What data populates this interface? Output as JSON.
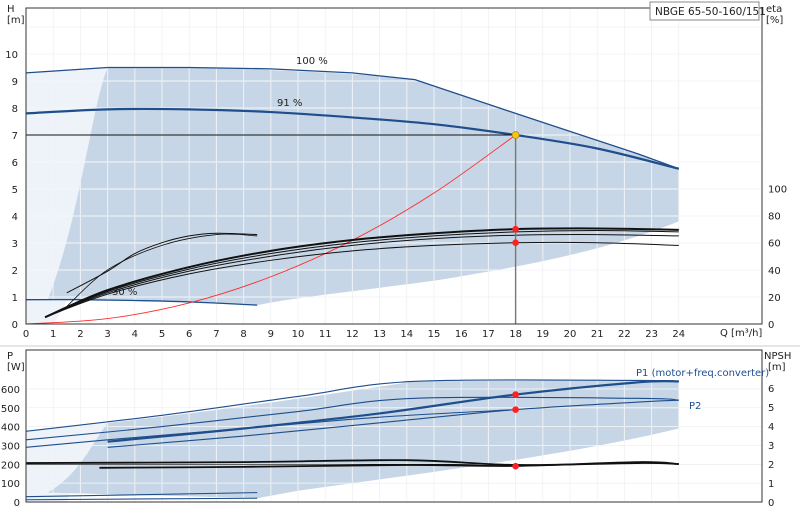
{
  "title": "NBGE 65-50-160/151",
  "top_chart": {
    "y_left_label": "H",
    "y_left_unit": "[m]",
    "y_right_label": "eta",
    "y_right_unit": "[%]",
    "x_label": "Q [m³/h]",
    "x_ticks": [
      "0",
      "1",
      "2",
      "3",
      "4",
      "5",
      "6",
      "7",
      "8",
      "9",
      "10",
      "11",
      "12",
      "13",
      "14",
      "15",
      "16",
      "17",
      "18",
      "19",
      "20",
      "21",
      "22",
      "23",
      "24"
    ],
    "y_left_ticks": [
      "0",
      "1",
      "2",
      "3",
      "4",
      "5",
      "6",
      "7",
      "8",
      "9",
      "10"
    ],
    "y_right_ticks": [
      "0",
      "20",
      "40",
      "60",
      "80",
      "100"
    ],
    "speed_labels": [
      "100 %",
      "91 %",
      "30 %"
    ]
  },
  "bottom_chart": {
    "y_left_label": "P",
    "y_left_unit": "[W]",
    "y_right_label": "NPSH",
    "y_right_unit": "[m]",
    "y_left_ticks": [
      "0",
      "100",
      "200",
      "300",
      "400",
      "500",
      "600"
    ],
    "y_right_ticks": [
      "0",
      "1",
      "2",
      "3",
      "4",
      "5",
      "6"
    ],
    "series_labels": [
      "P1 (motor+freq.converter)",
      "P2"
    ]
  },
  "chart_data": [
    {
      "type": "line",
      "name": "pump-curves",
      "xlim": [
        0,
        24.6
      ],
      "ylim": [
        0,
        11
      ],
      "y2lim": [
        0,
        102.8
      ],
      "grid": true,
      "duty_point": {
        "x": 18,
        "y": 7.0
      },
      "series": [
        {
          "name": "100 %",
          "role": "head",
          "x": [
            0,
            3,
            6,
            9,
            12,
            14.3,
            18,
            22.5,
            24
          ],
          "y": [
            9.3,
            9.5,
            9.5,
            9.45,
            9.3,
            9.05,
            7.8,
            6.3,
            5.75
          ]
        },
        {
          "name": "91 %",
          "role": "head",
          "x": [
            0,
            3,
            6,
            9,
            12,
            15,
            18,
            21,
            24
          ],
          "y": [
            7.8,
            7.95,
            7.95,
            7.85,
            7.65,
            7.4,
            7.0,
            6.5,
            5.75
          ]
        },
        {
          "name": "30 %",
          "role": "head",
          "x": [
            0,
            2,
            4,
            6,
            8.5
          ],
          "y": [
            0.9,
            0.9,
            0.87,
            0.82,
            0.7
          ]
        },
        {
          "role": "system",
          "x": [
            0,
            3,
            6,
            9,
            12,
            15,
            18
          ],
          "y": [
            0,
            0.2,
            0.78,
            1.75,
            3.1,
            4.85,
            7.0
          ]
        },
        {
          "role": "eta",
          "x": [
            0.7,
            3,
            6,
            9,
            12,
            15,
            18,
            21,
            24
          ],
          "y": [
            5,
            22,
            37,
            47,
            54,
            58,
            60,
            60,
            58
          ]
        },
        {
          "role": "eta",
          "x": [
            0.7,
            3,
            6,
            9,
            12,
            15,
            18,
            21,
            24
          ],
          "y": [
            5,
            23,
            39,
            50,
            58,
            63,
            65.5,
            66,
            65
          ]
        },
        {
          "role": "eta",
          "x": [
            0.7,
            3,
            6,
            9,
            12,
            15,
            18,
            21,
            24
          ],
          "y": [
            5,
            24,
            40.5,
            52,
            60,
            65,
            68,
            69,
            68
          ]
        },
        {
          "role": "eta",
          "x": [
            0.7,
            3,
            6,
            9,
            12,
            15,
            18,
            21,
            24
          ],
          "y": [
            5,
            25,
            42,
            54,
            62,
            67,
            70,
            70.5,
            69.5
          ]
        },
        {
          "role": "eta",
          "x": [
            1.5,
            3,
            4,
            5,
            6,
            7,
            8.5
          ],
          "y": [
            23,
            39,
            52,
            60,
            65,
            67,
            66
          ]
        }
      ],
      "points": [
        {
          "x": 18,
          "y_eta": 70
        },
        {
          "x": 18,
          "y_eta": 60
        }
      ]
    },
    {
      "type": "line",
      "name": "power-npsh",
      "xlim": [
        0,
        24.6
      ],
      "ylim": [
        0,
        690
      ],
      "y2lim": [
        0,
        6.9
      ],
      "grid": true,
      "series": [
        {
          "name": "P1 (motor+freq.converter)",
          "role": "power",
          "x": [
            3,
            8,
            13,
            18,
            22.5,
            24
          ],
          "y": [
            320,
            390,
            470,
            570,
            635,
            640
          ]
        },
        {
          "name": "P2",
          "role": "power",
          "x": [
            3,
            8,
            13,
            18,
            22.5,
            24
          ],
          "y": [
            290,
            350,
            420,
            490,
            530,
            540
          ]
        },
        {
          "role": "power",
          "x": [
            0,
            5,
            10,
            14.3,
            22.5,
            24
          ],
          "y": [
            375,
            460,
            560,
            640,
            645,
            640
          ]
        },
        {
          "role": "power",
          "x": [
            0,
            5,
            10,
            14.3,
            22.5,
            24
          ],
          "y": [
            330,
            400,
            480,
            550,
            550,
            540
          ]
        },
        {
          "role": "power",
          "x": [
            0,
            3,
            8,
            13,
            18
          ],
          "y": [
            290,
            330,
            390,
            450,
            490
          ]
        },
        {
          "role": "npsh",
          "x": [
            2.7,
            8,
            14,
            18,
            22.5,
            24
          ],
          "y": [
            1.8,
            1.85,
            1.95,
            1.9,
            2.1,
            2.0
          ]
        },
        {
          "role": "npsh",
          "x": [
            0,
            8,
            14,
            18,
            22.5,
            24
          ],
          "y": [
            2.05,
            2.1,
            2.2,
            1.95,
            2.05,
            2.0
          ]
        },
        {
          "role": "power-30",
          "x": [
            0,
            8.5
          ],
          "y": [
            28,
            50
          ]
        },
        {
          "role": "power-30",
          "x": [
            0,
            8.5
          ],
          "y": [
            12,
            20
          ]
        }
      ],
      "points": [
        {
          "x": 18,
          "y": 570
        },
        {
          "x": 18,
          "y": 490
        },
        {
          "x": 18,
          "y": 190
        }
      ]
    }
  ]
}
